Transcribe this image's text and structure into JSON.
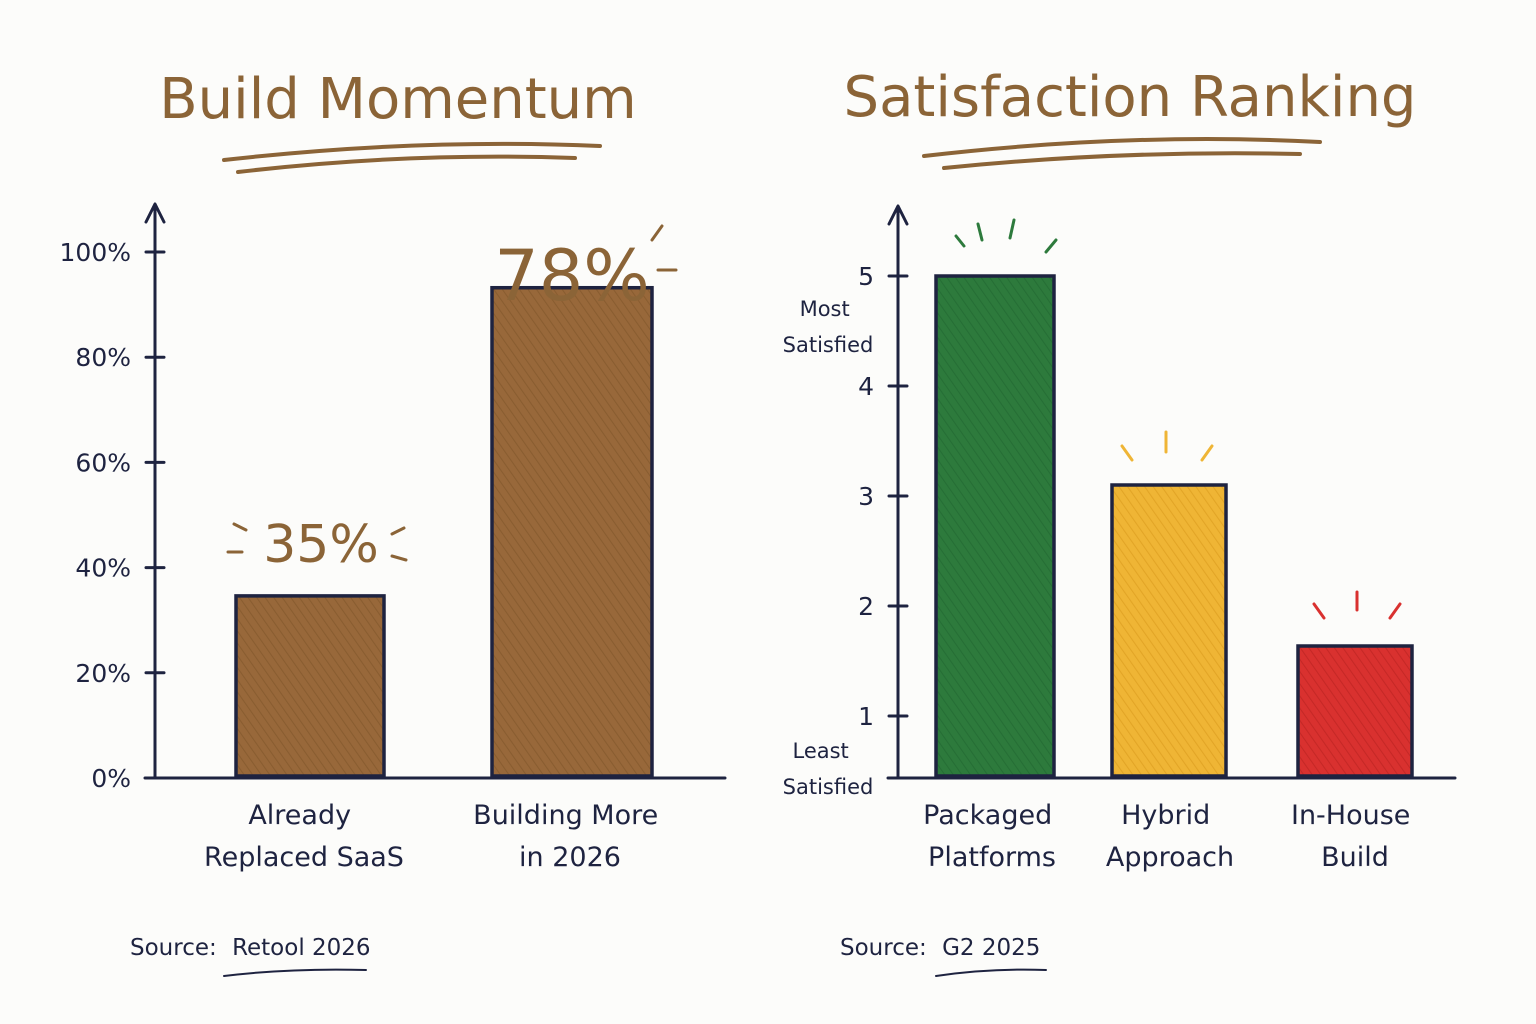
{
  "chart_data": [
    {
      "type": "bar",
      "title": "Build Momentum",
      "categories": [
        "Already Replaced SaaS",
        "Building More in 2026"
      ],
      "category_lines": [
        [
          "Already",
          "Replaced SaaS"
        ],
        [
          "Building More",
          "in 2026"
        ]
      ],
      "values": [
        35,
        78
      ],
      "data_labels": [
        "35%",
        "78%"
      ],
      "yticks": [
        "0%",
        "20%",
        "40%",
        "60%",
        "80%",
        "100%"
      ],
      "ylim": [
        0,
        100
      ],
      "grid": false,
      "source_prefix": "Source:",
      "source_name": "Retool 2026",
      "colors": {
        "bar": "#98683a",
        "title": "#8b6437",
        "ink": "#1e2340"
      }
    },
    {
      "type": "bar",
      "title": "Satisfaction Ranking",
      "categories": [
        "Packaged Platforms",
        "Hybrid Approach",
        "In-House Build"
      ],
      "category_lines": [
        [
          "Packaged",
          "Platforms"
        ],
        [
          "Hybrid",
          "Approach"
        ],
        [
          "In-House",
          "Build"
        ]
      ],
      "values": [
        5,
        3.1,
        1.7
      ],
      "bar_colors": [
        "#2d7a3c",
        "#efb535",
        "#d9312f"
      ],
      "yticks": [
        "1",
        "2",
        "3",
        "4",
        "5"
      ],
      "ylim": [
        0.4,
        5.6
      ],
      "top_annotation": [
        "Most",
        "Satisfied"
      ],
      "bottom_annotation": [
        "Least",
        "Satisfied"
      ],
      "grid": false,
      "source_prefix": "Source:",
      "source_name": "G2 2025",
      "colors": {
        "title": "#8b6437",
        "ink": "#1e2340"
      }
    }
  ]
}
